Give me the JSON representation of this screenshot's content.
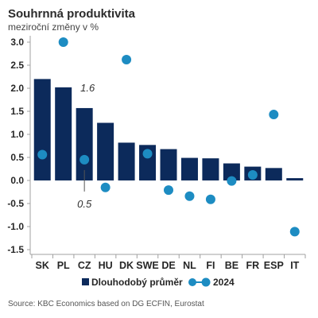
{
  "chart_data": {
    "type": "bar",
    "title": "Souhrnná produktivita",
    "subtitle": "meziroční změny v %",
    "categories": [
      "SK",
      "PL",
      "CZ",
      "HU",
      "DK",
      "SWE",
      "DE",
      "NL",
      "FI",
      "BE",
      "FR",
      "ESP",
      "IT"
    ],
    "series": [
      {
        "name": "Dlouhodobý průměr",
        "type": "bar",
        "color": "#0c2a5b",
        "values": [
          2.2,
          2.02,
          1.57,
          1.25,
          0.82,
          0.77,
          0.68,
          0.49,
          0.48,
          0.37,
          0.3,
          0.27,
          0.05
        ]
      },
      {
        "name": "2024",
        "type": "scatter",
        "color": "#1d8cc2",
        "values": [
          0.56,
          3.0,
          0.45,
          -0.15,
          2.62,
          0.58,
          -0.21,
          -0.34,
          -0.41,
          -0.01,
          0.12,
          1.43,
          -1.11
        ]
      }
    ],
    "ylim": [
      -1.5,
      3.0
    ],
    "yticks": [
      "3.0",
      "2.5",
      "2.0",
      "1.5",
      "1.0",
      "0.5",
      "0.0",
      "-0.5",
      "-1.0",
      "-1.5"
    ],
    "annotations": [
      {
        "category": "CZ",
        "series": "Dlouhodobý průměr",
        "text": "1.6"
      },
      {
        "category": "CZ",
        "series": "2024",
        "text": "0.5"
      }
    ],
    "legend": "bottom",
    "grid": false
  },
  "source": "Source: KBC Economics based on DG ECFIN, Eurostat"
}
